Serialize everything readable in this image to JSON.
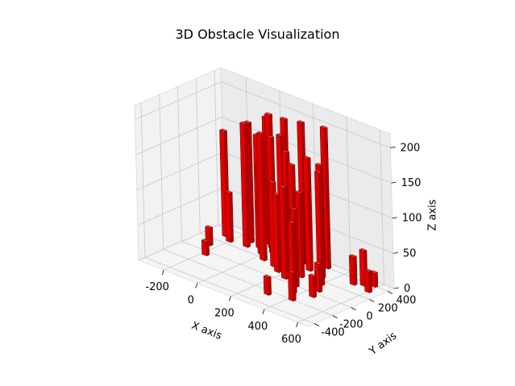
{
  "chart_data": {
    "type": "bar3d",
    "title": "3D Obstacle Visualization",
    "xlabel": "X axis",
    "ylabel": "Y axis",
    "zlabel": "Z axis",
    "xticks": [
      -200,
      0,
      200,
      400,
      600
    ],
    "yticks": [
      -400,
      -200,
      0,
      200,
      400
    ],
    "zticks": [
      0,
      50,
      100,
      150,
      200
    ],
    "xlim": [
      -350,
      660
    ],
    "ylim": [
      -470,
      470
    ],
    "zlim": [
      0,
      220
    ],
    "grid": true,
    "bar_color": "#e00000",
    "obstacles": [
      {
        "x": -250,
        "y": 300,
        "h": 150
      },
      {
        "x": -200,
        "y": 250,
        "h": 70
      },
      {
        "x": -130,
        "y": 350,
        "h": 170
      },
      {
        "x": -110,
        "y": 270,
        "h": 175
      },
      {
        "x": -60,
        "y": 420,
        "h": 180
      },
      {
        "x": -60,
        "y": 320,
        "h": 160
      },
      {
        "x": -20,
        "y": 380,
        "h": 190
      },
      {
        "x": -10,
        "y": 250,
        "h": 130
      },
      {
        "x": 20,
        "y": 320,
        "h": 165
      },
      {
        "x": 40,
        "y": 180,
        "h": 180
      },
      {
        "x": 60,
        "y": 400,
        "h": 190
      },
      {
        "x": 90,
        "y": 300,
        "h": 175
      },
      {
        "x": 120,
        "y": 150,
        "h": 120
      },
      {
        "x": 150,
        "y": 250,
        "h": 160
      },
      {
        "x": 170,
        "y": 100,
        "h": 110
      },
      {
        "x": 190,
        "y": 350,
        "h": 200
      },
      {
        "x": 210,
        "y": 200,
        "h": 150
      },
      {
        "x": 240,
        "y": 50,
        "h": 130
      },
      {
        "x": 260,
        "y": 280,
        "h": 160
      },
      {
        "x": 280,
        "y": 150,
        "h": 120
      },
      {
        "x": 300,
        "y": 400,
        "h": 200
      },
      {
        "x": 330,
        "y": 0,
        "h": 110
      },
      {
        "x": 350,
        "y": 250,
        "h": 160
      },
      {
        "x": 370,
        "y": -100,
        "h": 100
      },
      {
        "x": 400,
        "y": 150,
        "h": 160
      },
      {
        "x": 420,
        "y": -200,
        "h": 40
      },
      {
        "x": 440,
        "y": 50,
        "h": 40
      },
      {
        "x": 460,
        "y": -50,
        "h": 30
      },
      {
        "x": 300,
        "y": -250,
        "h": 25
      },
      {
        "x": 500,
        "y": 320,
        "h": 40
      },
      {
        "x": 540,
        "y": 360,
        "h": 50
      },
      {
        "x": 580,
        "y": 400,
        "h": 20
      },
      {
        "x": 600,
        "y": 300,
        "h": 30
      },
      {
        "x": -240,
        "y": 100,
        "h": 25
      },
      {
        "x": -180,
        "y": -50,
        "h": 20
      }
    ]
  }
}
